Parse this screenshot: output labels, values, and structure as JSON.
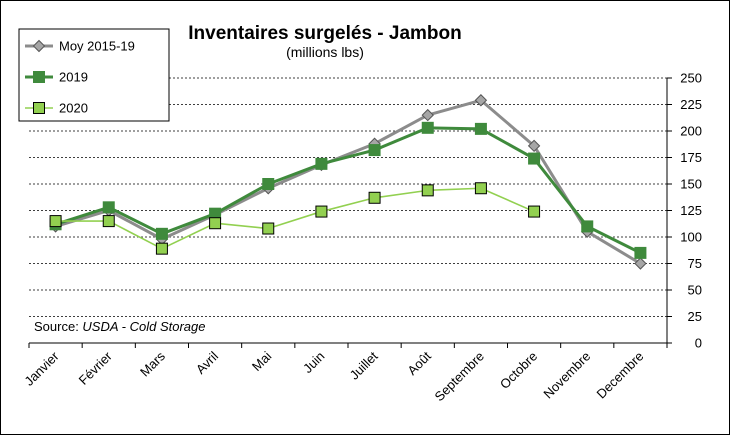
{
  "chart_data": {
    "type": "line",
    "title": "Inventaires surgelés - Jambon",
    "subtitle": "(millions lbs)",
    "source_prefix": "Source: ",
    "source_italic": "USDA - Cold Storage",
    "categories": [
      "Janvier",
      "Février",
      "Mars",
      "Avril",
      "Mai",
      "Juin",
      "Juillet",
      "Août",
      "Septembre",
      "Octobre",
      "Novembre",
      "Decembre"
    ],
    "y_ticks": [
      "0",
      "25",
      "50",
      "75",
      "100",
      "125",
      "150",
      "175",
      "200",
      "225",
      "250"
    ],
    "ylim": [
      0,
      250
    ],
    "grid": true,
    "legend_position": "top-left",
    "series": [
      {
        "name": "Moy 2015-19",
        "values": [
          110,
          125,
          98,
          121,
          146,
          168,
          188,
          215,
          229,
          186,
          105,
          75
        ],
        "color": "#8c8c8c",
        "marker_fill": "#a6a6a6",
        "marker": "diamond"
      },
      {
        "name": "2019",
        "values": [
          112,
          128,
          103,
          122,
          150,
          169,
          182,
          203,
          202,
          174,
          110,
          85
        ],
        "color": "#3f8a3c",
        "marker_fill": "#3f8a3c",
        "marker": "square"
      },
      {
        "name": "2020",
        "values": [
          115,
          115,
          89,
          113,
          108,
          124,
          137,
          144,
          146,
          124,
          null,
          null
        ],
        "color": "#92d050",
        "marker_fill": "#92d050",
        "marker": "square"
      }
    ]
  }
}
